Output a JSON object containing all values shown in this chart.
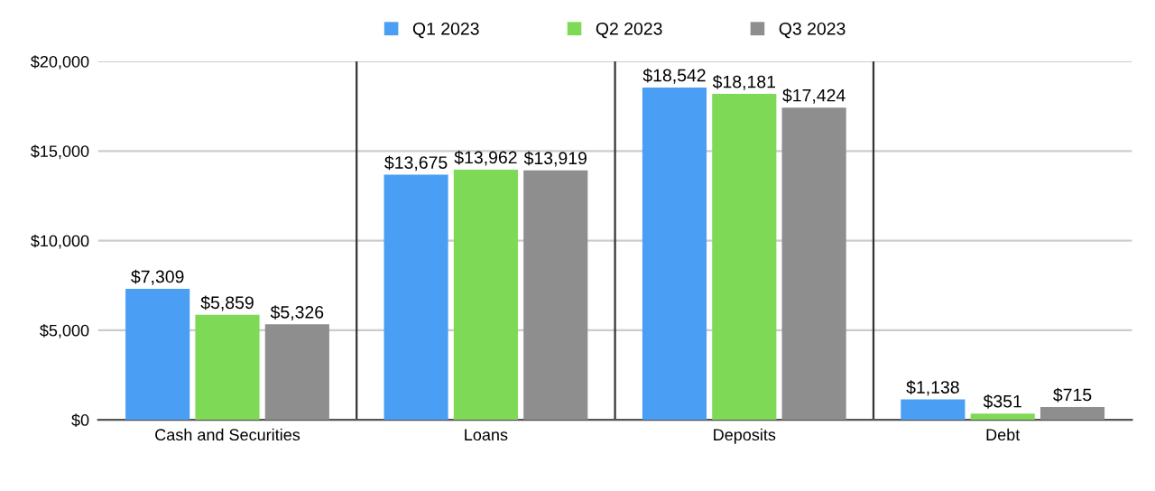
{
  "chart_data": {
    "type": "bar",
    "categories": [
      "Cash and Securities",
      "Loans",
      "Deposits",
      "Debt"
    ],
    "series": [
      {
        "name": "Q1 2023",
        "color": "#4a9ff5",
        "values": [
          7309,
          13675,
          18542,
          1138
        ],
        "value_labels": [
          "$7,309",
          "$13,675",
          "$18,542",
          "$1,138"
        ]
      },
      {
        "name": "Q2 2023",
        "color": "#7ed957",
        "values": [
          5859,
          13962,
          18181,
          351
        ],
        "value_labels": [
          "$5,859",
          "$13,962",
          "$18,181",
          "$351"
        ]
      },
      {
        "name": "Q3 2023",
        "color": "#8e8e8e",
        "values": [
          5326,
          13919,
          17424,
          715
        ],
        "value_labels": [
          "$5,326",
          "$13,919",
          "$17,424",
          "$715"
        ]
      }
    ],
    "ylim": [
      0,
      20000
    ],
    "yticks": [
      {
        "value": 0,
        "label": "$0"
      },
      {
        "value": 5000,
        "label": "$5,000"
      },
      {
        "value": 10000,
        "label": "$10,000"
      },
      {
        "value": 15000,
        "label": "$15,000"
      },
      {
        "value": 20000,
        "label": "$20,000"
      }
    ],
    "grid": true,
    "legend": "top"
  }
}
